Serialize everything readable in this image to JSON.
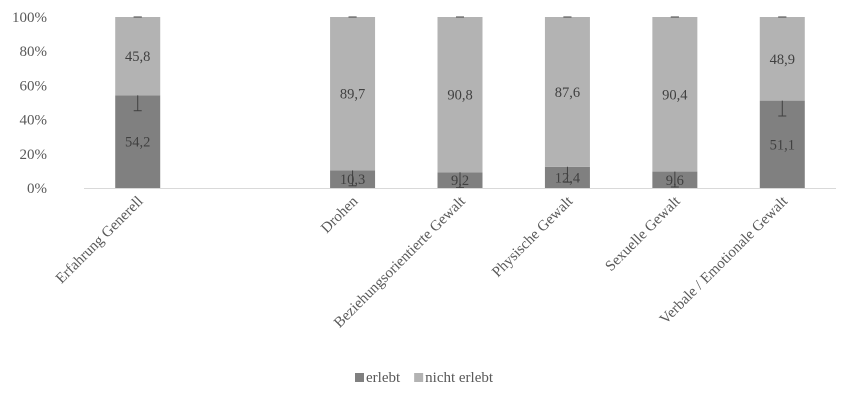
{
  "chart_data": {
    "type": "bar",
    "stacked": true,
    "normalized": true,
    "categories": [
      "Erfahrung Generell",
      "",
      "Drohen",
      "Beziehungsorientierte Gewalt",
      "Physische Gewalt",
      "Sexuelle Gewalt",
      "Verbale / Emotionale Gewalt"
    ],
    "series": [
      {
        "name": "erlebt",
        "color": "#808080",
        "values": [
          54.2,
          null,
          10.3,
          9.2,
          12.4,
          9.6,
          51.1
        ],
        "labels": [
          "54,2",
          "",
          "10,3",
          "9,2",
          "12,4",
          "9,6",
          "51,1"
        ],
        "error": [
          9,
          null,
          9,
          9,
          9,
          9,
          9
        ]
      },
      {
        "name": "nicht erlebt",
        "color": "#b3b3b3",
        "values": [
          45.8,
          null,
          89.7,
          90.8,
          87.6,
          90.4,
          48.9
        ],
        "labels": [
          "45,8",
          "",
          "89,7",
          "90,8",
          "87,6",
          "90,4",
          "48,9"
        ],
        "error": [
          0,
          null,
          0,
          0,
          0,
          0,
          0
        ]
      }
    ],
    "y_ticks": [
      "0%",
      "20%",
      "40%",
      "60%",
      "80%",
      "100%"
    ],
    "ylim": [
      0,
      100
    ],
    "grid": false,
    "legend": "bottom-center",
    "title": "",
    "xlabel": "",
    "ylabel": ""
  }
}
